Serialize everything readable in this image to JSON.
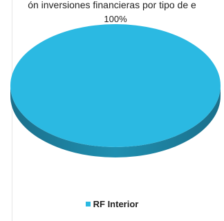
{
  "chart_data": {
    "type": "pie",
    "title": "ón inversiones financieras por tipo de e",
    "categories": [
      "RF Interior"
    ],
    "values": [
      100
    ],
    "data_labels": [
      "100%"
    ],
    "legend": {
      "placement": "bottom",
      "entries": [
        "RF Interior"
      ]
    },
    "style": "3d",
    "colors": {
      "top": "#2bb9e2",
      "side": "#1f86a6",
      "side_dark": "#1b6f8b"
    }
  }
}
